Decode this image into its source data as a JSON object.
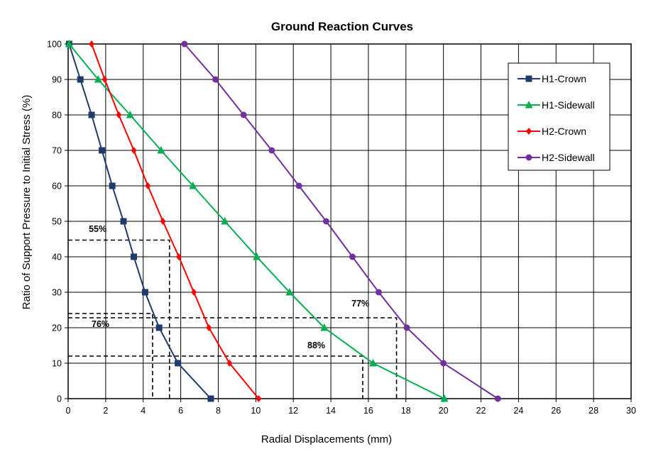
{
  "chart_data": {
    "type": "line",
    "title": "Ground Reaction Curves",
    "xlabel": "Radial Displacements (mm)",
    "ylabel": "Ratio of Support Pressure to Initial Stress (%)",
    "xlim": [
      0,
      30
    ],
    "ylim": [
      0,
      100
    ],
    "x_ticks": [
      "0",
      "2",
      "4",
      "6",
      "8",
      "10",
      "12",
      "14",
      "16",
      "18",
      "20",
      "22",
      "24",
      "26",
      "28",
      "30"
    ],
    "y_ticks": [
      "0",
      "10",
      "20",
      "30",
      "40",
      "50",
      "60",
      "70",
      "80",
      "90",
      "100"
    ],
    "grid": true,
    "legend_position": "top-right",
    "series": [
      {
        "name": "H1-Crown",
        "color": "#1F3A6B",
        "marker": "square",
        "x": [
          0.05,
          0.65,
          1.25,
          1.8,
          2.35,
          2.95,
          3.5,
          4.1,
          4.85,
          5.85,
          7.6
        ],
        "y": [
          100,
          90,
          80,
          70,
          60,
          50,
          40,
          30,
          20,
          10,
          0
        ]
      },
      {
        "name": "H1-Sidewall",
        "color": "#00B050",
        "marker": "triangle",
        "x": [
          0.05,
          1.6,
          3.3,
          4.95,
          6.65,
          8.35,
          10.05,
          11.8,
          13.65,
          16.25,
          20.05
        ],
        "y": [
          100,
          90,
          80,
          70,
          60,
          50,
          40,
          30,
          20,
          10,
          0
        ]
      },
      {
        "name": "H2-Crown",
        "color": "#FF0000",
        "marker": "diamond",
        "x": [
          1.25,
          1.95,
          2.7,
          3.5,
          4.25,
          5.05,
          5.9,
          6.7,
          7.5,
          8.6,
          10.15
        ],
        "y": [
          100,
          90,
          80,
          70,
          60,
          50,
          40,
          30,
          20,
          10,
          0
        ]
      },
      {
        "name": "H2-Sidewall",
        "color": "#7030A0",
        "marker": "circle",
        "x": [
          6.2,
          7.85,
          9.35,
          10.85,
          12.3,
          13.75,
          15.15,
          16.55,
          18.05,
          20.0,
          22.9
        ],
        "y": [
          100,
          90,
          80,
          70,
          60,
          50,
          40,
          30,
          20,
          10,
          0
        ]
      }
    ],
    "annotations": [
      {
        "text": "55%",
        "label_x": 1.1,
        "label_y": 47,
        "path": [
          [
            0,
            44.7
          ],
          [
            5.4,
            44.7
          ],
          [
            5.4,
            0
          ]
        ]
      },
      {
        "text": "76%",
        "label_x": 1.25,
        "label_y": 20.2,
        "path": [
          [
            0,
            24
          ],
          [
            4.5,
            24
          ],
          [
            4.5,
            0
          ]
        ]
      },
      {
        "text": "77%",
        "label_x": 15.1,
        "label_y": 26,
        "path": [
          [
            0,
            22.8
          ],
          [
            17.5,
            22.8
          ],
          [
            17.5,
            0
          ]
        ]
      },
      {
        "text": "88%",
        "label_x": 12.75,
        "label_y": 14.2,
        "path": [
          [
            0,
            12
          ],
          [
            15.7,
            12
          ],
          [
            15.7,
            0
          ]
        ]
      }
    ]
  }
}
